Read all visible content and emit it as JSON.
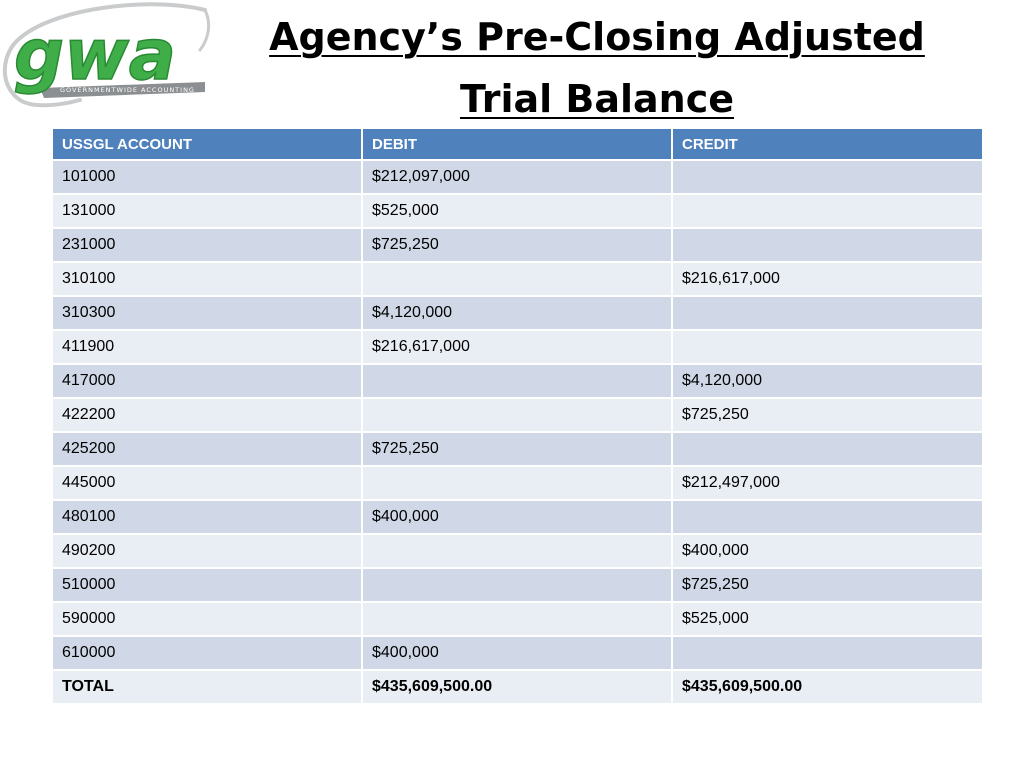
{
  "logo": {
    "wordmark": "gwa",
    "tagline": "GOVERNMENTWIDE ACCOUNTING",
    "colors": {
      "green": "#3fae49",
      "ring": "#c9cbcc",
      "band": "#8c8f91"
    }
  },
  "title": {
    "line1": "Agency’s Pre-Closing Adjusted",
    "line2": "Trial Balance"
  },
  "table": {
    "headers": {
      "account": "USSGL ACCOUNT",
      "debit": "DEBIT",
      "credit": "CREDIT"
    },
    "rows": [
      {
        "account": "101000",
        "debit": "$212,097,000",
        "credit": ""
      },
      {
        "account": "131000",
        "debit": "$525,000",
        "credit": ""
      },
      {
        "account": "231000",
        "debit": "$725,250",
        "credit": ""
      },
      {
        "account": "310100",
        "debit": "",
        "credit": "$216,617,000"
      },
      {
        "account": "310300",
        "debit": "$4,120,000",
        "credit": ""
      },
      {
        "account": "411900",
        "debit": "$216,617,000",
        "credit": ""
      },
      {
        "account": "417000",
        "debit": "",
        "credit": "$4,120,000"
      },
      {
        "account": "422200",
        "debit": "",
        "credit": "$725,250"
      },
      {
        "account": "425200",
        "debit": "$725,250",
        "credit": ""
      },
      {
        "account": "445000",
        "debit": "",
        "credit": "$212,497,000"
      },
      {
        "account": "480100",
        "debit": "$400,000",
        "credit": ""
      },
      {
        "account": "490200",
        "debit": "",
        "credit": "$400,000"
      },
      {
        "account": "510000",
        "debit": "",
        "credit": "$725,250"
      },
      {
        "account": "590000",
        "debit": "",
        "credit": "$525,000"
      },
      {
        "account": "610000",
        "debit": "$400,000",
        "credit": ""
      }
    ],
    "total": {
      "account": "TOTAL",
      "debit": "$435,609,500.00",
      "credit": "$435,609,500.00"
    },
    "colors": {
      "header": "#4f81bd",
      "row_dark": "#d0d8e8",
      "row_light": "#e9edf4"
    }
  }
}
